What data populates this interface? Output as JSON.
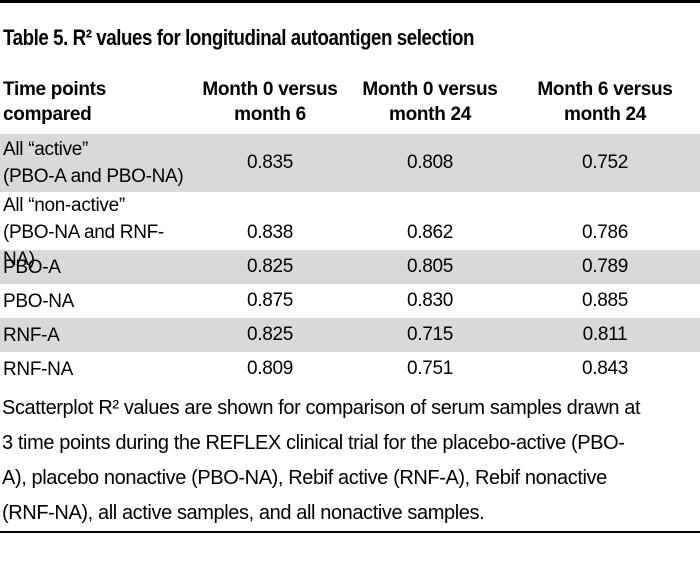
{
  "title": "Table 5. R² values for longitudinal autoantigen selection",
  "table": {
    "header": {
      "row_label": "Time points\ncompared",
      "columns": [
        "Month 0 versus\nmonth 6",
        "Month 0 versus\nmonth 24",
        "Month 6 versus\nmonth 24"
      ]
    },
    "rows": [
      {
        "label": "All “active”\n(PBO-A and PBO-NA)",
        "values": [
          "0.835",
          "0.808",
          "0.752"
        ]
      },
      {
        "label": "All “non-active”\n(PBO-NA and RNF-NA)",
        "values": [
          "0.838",
          "0.862",
          "0.786"
        ]
      },
      {
        "label": "PBO-A",
        "values": [
          "0.825",
          "0.805",
          "0.789"
        ]
      },
      {
        "label": "PBO-NA",
        "values": [
          "0.875",
          "0.830",
          "0.885"
        ]
      },
      {
        "label": "RNF-A",
        "values": [
          "0.825",
          "0.715",
          "0.811"
        ]
      },
      {
        "label": "RNF-NA",
        "values": [
          "0.809",
          "0.751",
          "0.843"
        ]
      }
    ]
  },
  "footnote": {
    "lines": [
      "Scatterplot R² values are shown for comparison of serum samples drawn at",
      "3 time points during the REFLEX clinical trial for the placebo-active (PBO-",
      "A), placebo nonactive (PBO-NA), Rebif active (RNF-A), Rebif nonactive",
      "(RNF-NA), all active samples, and all nonactive samples."
    ]
  },
  "colors": {
    "row_shade": "#d9d9d9",
    "rule": "#000000",
    "text": "#000000",
    "background": "#ffffff"
  }
}
